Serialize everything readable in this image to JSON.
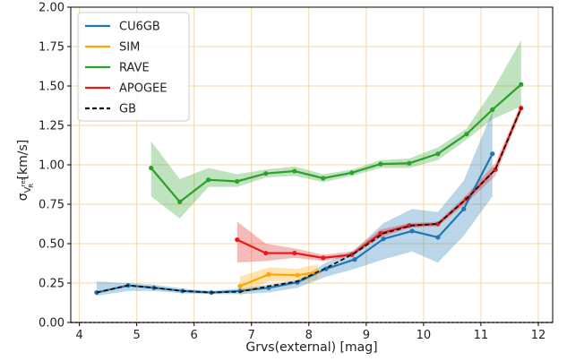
{
  "chart_data": {
    "type": "line",
    "xlabel": "Grvs(external) [mag]",
    "ylabel_main": "σ",
    "ylabel_sub": "V",
    "ylabel_subsub": "res",
    "ylabel_subsub2": "R",
    "ylabel_unit": " [km/s]",
    "xlim": [
      3.85,
      12.25
    ],
    "ylim": [
      0.0,
      2.0
    ],
    "xticks": [
      4,
      5,
      6,
      7,
      8,
      9,
      10,
      11,
      12
    ],
    "yticks": [
      0.0,
      0.25,
      0.5,
      0.75,
      1.0,
      1.25,
      1.5,
      1.75,
      2.0
    ],
    "xtick_labels": [
      "4",
      "5",
      "6",
      "7",
      "8",
      "9",
      "10",
      "11",
      "12"
    ],
    "ytick_labels": [
      "0.00",
      "0.25",
      "0.50",
      "0.75",
      "1.00",
      "1.25",
      "1.50",
      "1.75",
      "2.00"
    ],
    "grid": true,
    "legend_position": "top-left",
    "series": [
      {
        "name": "CU6GB",
        "color": "#1f77b4",
        "style": "solid-markers",
        "x": [
          4.3,
          4.85,
          5.3,
          5.8,
          6.3,
          6.8,
          7.3,
          7.8,
          8.3,
          8.8,
          9.3,
          9.8,
          10.25,
          10.7,
          11.2
        ],
        "y": [
          0.19,
          0.235,
          0.22,
          0.2,
          0.19,
          0.2,
          0.22,
          0.255,
          0.34,
          0.4,
          0.53,
          0.58,
          0.54,
          0.72,
          1.07
        ],
        "lower": [
          0.17,
          0.2,
          0.2,
          0.185,
          0.18,
          0.18,
          0.19,
          0.22,
          0.29,
          0.34,
          0.4,
          0.45,
          0.38,
          0.55,
          0.8
        ],
        "upper": [
          0.26,
          0.25,
          0.24,
          0.215,
          0.2,
          0.215,
          0.24,
          0.27,
          0.38,
          0.46,
          0.63,
          0.72,
          0.7,
          0.9,
          1.34
        ]
      },
      {
        "name": "SIM",
        "color": "#ffa500",
        "style": "solid-markers",
        "x": [
          6.8,
          7.3,
          7.8,
          8.15
        ],
        "y": [
          0.23,
          0.305,
          0.3,
          0.32
        ],
        "lower": [
          0.17,
          0.26,
          0.26,
          0.27
        ],
        "upper": [
          0.29,
          0.35,
          0.34,
          0.37
        ]
      },
      {
        "name": "RAVE",
        "color": "#2ca02c",
        "style": "solid-markers",
        "x": [
          5.25,
          5.75,
          6.25,
          6.75,
          7.25,
          7.75,
          8.25,
          8.75,
          9.25,
          9.75,
          10.25,
          10.75,
          11.2,
          11.7
        ],
        "y": [
          0.98,
          0.765,
          0.905,
          0.895,
          0.945,
          0.96,
          0.915,
          0.95,
          1.005,
          1.01,
          1.07,
          1.195,
          1.35,
          1.51
        ],
        "lower": [
          0.8,
          0.66,
          0.86,
          0.86,
          0.92,
          0.93,
          0.89,
          0.93,
          0.98,
          0.98,
          1.03,
          1.16,
          1.29,
          1.37
        ],
        "upper": [
          1.15,
          0.91,
          0.98,
          0.94,
          0.97,
          0.99,
          0.94,
          0.97,
          1.03,
          1.04,
          1.11,
          1.23,
          1.47,
          1.79
        ]
      },
      {
        "name": "APOGEE",
        "color": "#e31a1c",
        "style": "solid-markers",
        "x": [
          6.75,
          7.25,
          7.75,
          8.25,
          8.75,
          9.25,
          9.75,
          10.25,
          10.75,
          11.25,
          11.7
        ],
        "y": [
          0.525,
          0.44,
          0.44,
          0.41,
          0.43,
          0.565,
          0.615,
          0.625,
          0.785,
          0.97,
          1.36
        ],
        "lower": [
          0.38,
          0.39,
          0.41,
          0.39,
          0.42,
          0.54,
          0.6,
          0.61,
          0.76,
          0.93,
          1.33
        ],
        "upper": [
          0.64,
          0.5,
          0.47,
          0.43,
          0.45,
          0.59,
          0.63,
          0.64,
          0.81,
          1.01,
          1.39
        ]
      },
      {
        "name": "GB",
        "color": "#111111",
        "style": "dashed",
        "x": [
          4.3,
          4.85,
          5.3,
          5.8,
          6.3,
          6.8,
          7.3,
          7.8,
          8.3,
          8.8,
          9.3,
          9.8,
          10.25,
          10.75,
          11.25,
          11.7
        ],
        "y": [
          0.19,
          0.235,
          0.22,
          0.2,
          0.19,
          0.195,
          0.23,
          0.26,
          0.345,
          0.44,
          0.565,
          0.615,
          0.625,
          0.785,
          0.97,
          1.36
        ]
      }
    ],
    "hline": {
      "y": 0.0,
      "color": "#6a3fa0"
    }
  }
}
